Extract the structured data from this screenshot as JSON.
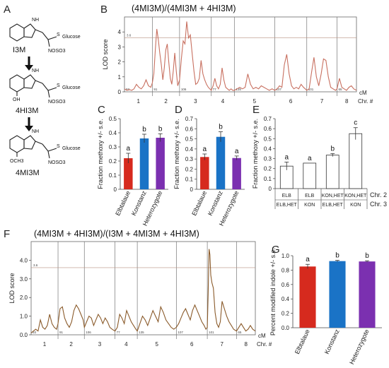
{
  "panel_labels": {
    "a": "A",
    "b": "B",
    "c": "C",
    "d": "D",
    "e": "E",
    "f": "F",
    "g": "G"
  },
  "compounds": {
    "i3m": {
      "name": "I3M",
      "nh": "NH",
      "s": "S",
      "glucose": "Glucose",
      "nosos": "NOSO3"
    },
    "hi4": {
      "name": "4HI3M",
      "nh": "NH",
      "oh": "OH",
      "s": "S",
      "glucose": "Glucose",
      "nosos": "NOSO3"
    },
    "mi4": {
      "name": "4MI3M",
      "nh": "NH",
      "och3": "OCH3",
      "s": "S",
      "glucose": "Glucose",
      "nosos": "NOSO3"
    }
  },
  "colors": {
    "red": "#d62a1e",
    "blue": "#1a73c6",
    "purple": "#7b30b0",
    "qtl": "#c87060",
    "qtl2": "#8a5a2a",
    "threshold": "#b89080"
  },
  "chart_data": [
    {
      "id": "B",
      "type": "line",
      "title": "(4MI3M)/(4MI3M + 4HI3M)",
      "ylabel": "LOD score",
      "xlabel": "cM",
      "chr_label": "Chr. #",
      "ylim": [
        0,
        5
      ],
      "yticks": [
        0,
        1,
        2,
        3,
        4
      ],
      "threshold": 3.6,
      "threshold_label": "3.6",
      "chromosomes": [
        {
          "label": "1",
          "length": "93",
          "x0": 0,
          "x1": 93
        },
        {
          "label": "2",
          "length": "91",
          "x0": 93,
          "x1": 184
        },
        {
          "label": "3",
          "length": "106",
          "x0": 184,
          "x1": 290
        },
        {
          "label": "4",
          "length": "77",
          "x0": 290,
          "x1": 367
        },
        {
          "label": "5",
          "length": "135",
          "x0": 367,
          "x1": 502
        },
        {
          "label": "6",
          "length": "107",
          "x0": 502,
          "x1": 609
        },
        {
          "label": "7",
          "length": "101",
          "x0": 609,
          "x1": 710
        },
        {
          "label": "8",
          "length": "65",
          "x0": 710,
          "x1": 775
        }
      ],
      "x": [
        0,
        8,
        16,
        24,
        32,
        40,
        48,
        56,
        64,
        72,
        80,
        88,
        93,
        98,
        103,
        108,
        113,
        118,
        123,
        128,
        133,
        138,
        143,
        148,
        153,
        158,
        163,
        168,
        173,
        178,
        184,
        190,
        196,
        202,
        208,
        214,
        220,
        226,
        232,
        238,
        244,
        250,
        256,
        262,
        268,
        274,
        280,
        285,
        290,
        296,
        302,
        308,
        314,
        320,
        326,
        332,
        338,
        344,
        350,
        356,
        362,
        367,
        376,
        385,
        394,
        403,
        412,
        421,
        430,
        439,
        448,
        457,
        466,
        475,
        484,
        493,
        502,
        510,
        518,
        526,
        534,
        542,
        550,
        558,
        566,
        574,
        582,
        590,
        598,
        604,
        609,
        617,
        625,
        633,
        641,
        649,
        657,
        665,
        673,
        681,
        689,
        697,
        705,
        710,
        718,
        726,
        734,
        742,
        750,
        758,
        766,
        775
      ],
      "y": [
        0.2,
        0.1,
        0.15,
        0.1,
        0.2,
        0.5,
        0.3,
        0.2,
        0.4,
        0.8,
        0.4,
        0.3,
        0.6,
        1.2,
        2.8,
        4.2,
        3.5,
        2.6,
        1.8,
        0.8,
        1.6,
        2.8,
        3.2,
        2.0,
        0.9,
        0.5,
        1.4,
        2.6,
        1.4,
        0.4,
        0.8,
        2.2,
        3.4,
        3.2,
        4.7,
        3.6,
        3.8,
        2.6,
        1.4,
        0.5,
        0.6,
        0.9,
        2.1,
        1.2,
        0.8,
        0.5,
        0.3,
        0.2,
        0.1,
        0.4,
        0.9,
        0.4,
        0.2,
        0.5,
        1.6,
        0.8,
        0.3,
        0.2,
        0.1,
        0.2,
        0.1,
        0.1,
        0.2,
        0.3,
        0.2,
        0.3,
        1.2,
        0.5,
        0.2,
        0.3,
        0.2,
        0.4,
        0.3,
        0.2,
        0.1,
        0.2,
        0.1,
        0.2,
        0.4,
        0.3,
        1.8,
        2.5,
        1.2,
        0.4,
        0.2,
        0.3,
        0.2,
        0.5,
        0.3,
        0.2,
        0.1,
        0.2,
        1.3,
        2.3,
        1.0,
        0.4,
        1.2,
        2.2,
        2.1,
        1.0,
        0.3,
        0.2,
        0.1,
        0.2,
        0.9,
        0.3,
        0.2,
        0.1,
        0.3,
        0.4,
        0.2,
        0.1
      ]
    },
    {
      "id": "C",
      "type": "bar",
      "categories": [
        "Elbtalaue",
        "Konstanz",
        "Heterozygote"
      ],
      "values": [
        0.22,
        0.36,
        0.365
      ],
      "errors": [
        0.035,
        0.03,
        0.028
      ],
      "letters": [
        "a",
        "b",
        "b"
      ],
      "ylabel": "Fraction methoxy +/- s.e.",
      "ylim": [
        0,
        0.5
      ],
      "yticks": [
        "0",
        "0.1",
        "0.2",
        "0.3",
        "0.4",
        "0.5"
      ]
    },
    {
      "id": "D",
      "type": "bar",
      "categories": [
        "Elbtalaue",
        "Konstanz",
        "Heterozygote"
      ],
      "values": [
        0.32,
        0.52,
        0.31
      ],
      "errors": [
        0.03,
        0.05,
        0.02
      ],
      "letters": [
        "a",
        "b",
        "a"
      ],
      "ylabel": "Fraction methoxy +/- s.e.",
      "ylim": [
        0,
        0.7
      ],
      "yticks": [
        "0",
        "0.1",
        "0.2",
        "0.3",
        "0.4",
        "0.5",
        "0.6",
        "0.7"
      ]
    },
    {
      "id": "E",
      "type": "bar",
      "categories": [
        "ELB/ELB,HET",
        "ELB/KON",
        "KON,HET/ELB,HET",
        "KON,HET/KON"
      ],
      "chr2": [
        "ELB",
        "ELB",
        "KON,HET",
        "KON,HET"
      ],
      "chr3": [
        "ELB,HET",
        "KON",
        "ELB,HET",
        "KON"
      ],
      "values": [
        0.225,
        0.255,
        0.335,
        0.55
      ],
      "errors": [
        0.04,
        0.0,
        0.015,
        0.06
      ],
      "letters": [
        "a",
        "a",
        "b",
        "c"
      ],
      "ylabel": "Fraction methoxy +/- s.e.",
      "row_labels": [
        "Chr. 2",
        "Chr. 3"
      ],
      "ylim": [
        0,
        0.7
      ],
      "yticks": [
        "0",
        "0.1",
        "0.2",
        "0.3",
        "0.4",
        "0.5",
        "0.6",
        "0.7"
      ]
    },
    {
      "id": "F",
      "type": "line",
      "title": "(4MI3M + 4HI3M)/(I3M + 4MI3M + 4HI3M)",
      "ylabel": "LOD score",
      "xlabel": "cM",
      "chr_label": "Chr. #",
      "ylim": [
        0,
        5
      ],
      "yticks": [
        "0.0",
        "1.0",
        "2.0",
        "3.0",
        "4.0"
      ],
      "threshold": 3.6,
      "threshold_label": "3.6",
      "chromosomes": [
        {
          "label": "1",
          "length": "93",
          "x0": 0,
          "x1": 93
        },
        {
          "label": "2",
          "length": "91",
          "x0": 93,
          "x1": 184
        },
        {
          "label": "3",
          "length": "106",
          "x0": 184,
          "x1": 290
        },
        {
          "label": "4",
          "length": "77",
          "x0": 290,
          "x1": 367
        },
        {
          "label": "5",
          "length": "135",
          "x0": 367,
          "x1": 502
        },
        {
          "label": "6",
          "length": "107",
          "x0": 502,
          "x1": 609
        },
        {
          "label": "7",
          "length": "101",
          "x0": 609,
          "x1": 710
        },
        {
          "label": "8",
          "length": "65",
          "x0": 710,
          "x1": 775
        }
      ],
      "x": [
        0,
        8,
        16,
        24,
        32,
        40,
        48,
        56,
        64,
        72,
        80,
        88,
        93,
        100,
        108,
        116,
        124,
        132,
        140,
        148,
        156,
        164,
        172,
        180,
        184,
        192,
        200,
        208,
        216,
        224,
        232,
        240,
        248,
        256,
        264,
        272,
        280,
        290,
        298,
        306,
        314,
        322,
        330,
        338,
        346,
        354,
        362,
        367,
        376,
        385,
        394,
        403,
        412,
        421,
        430,
        439,
        448,
        457,
        466,
        475,
        484,
        493,
        502,
        510,
        518,
        526,
        534,
        542,
        550,
        558,
        566,
        574,
        582,
        590,
        598,
        604,
        609,
        612,
        615,
        618,
        621,
        625,
        630,
        636,
        642,
        648,
        654,
        660,
        668,
        676,
        684,
        692,
        700,
        710,
        718,
        726,
        734,
        742,
        750,
        758,
        766,
        775
      ],
      "y": [
        0.1,
        0.2,
        0.3,
        0.2,
        0.8,
        0.4,
        0.3,
        0.5,
        1.1,
        0.6,
        0.4,
        0.3,
        0.6,
        1.4,
        1.5,
        0.9,
        0.6,
        0.4,
        0.7,
        1.3,
        1.6,
        1.4,
        1.1,
        0.8,
        0.4,
        0.7,
        1.0,
        0.9,
        0.5,
        0.8,
        1.1,
        0.9,
        0.6,
        0.9,
        0.7,
        0.4,
        0.3,
        0.2,
        0.4,
        1.1,
        0.9,
        0.6,
        1.3,
        1.0,
        0.7,
        0.5,
        0.3,
        0.2,
        0.6,
        1.0,
        0.8,
        0.5,
        0.9,
        1.3,
        1.0,
        0.7,
        1.5,
        1.2,
        0.8,
        0.6,
        0.4,
        0.3,
        0.4,
        0.6,
        0.9,
        1.2,
        1.4,
        1.1,
        0.8,
        1.3,
        1.6,
        1.3,
        1.0,
        0.7,
        0.5,
        0.3,
        0.4,
        2.2,
        4.6,
        4.3,
        3.2,
        2.8,
        2.5,
        1.2,
        0.6,
        0.4,
        0.7,
        1.8,
        1.4,
        1.0,
        0.7,
        0.5,
        0.3,
        0.2,
        0.4,
        0.6,
        0.4,
        0.2,
        0.3,
        0.5,
        0.3,
        0.2
      ]
    },
    {
      "id": "G",
      "type": "bar",
      "categories": [
        "Elbtalaue",
        "Konstanz",
        "Heterozygote"
      ],
      "values": [
        0.85,
        0.925,
        0.92
      ],
      "errors": [
        0.03,
        0.01,
        0.01
      ],
      "letters": [
        "a",
        "b",
        "b"
      ],
      "ylabel": "Percent modified indole +/- s.e.",
      "ylim": [
        0,
        1.0
      ],
      "yticks": [
        "0.0",
        "0.2",
        "0.4",
        "0.6",
        "0.8",
        "1.0"
      ]
    }
  ]
}
